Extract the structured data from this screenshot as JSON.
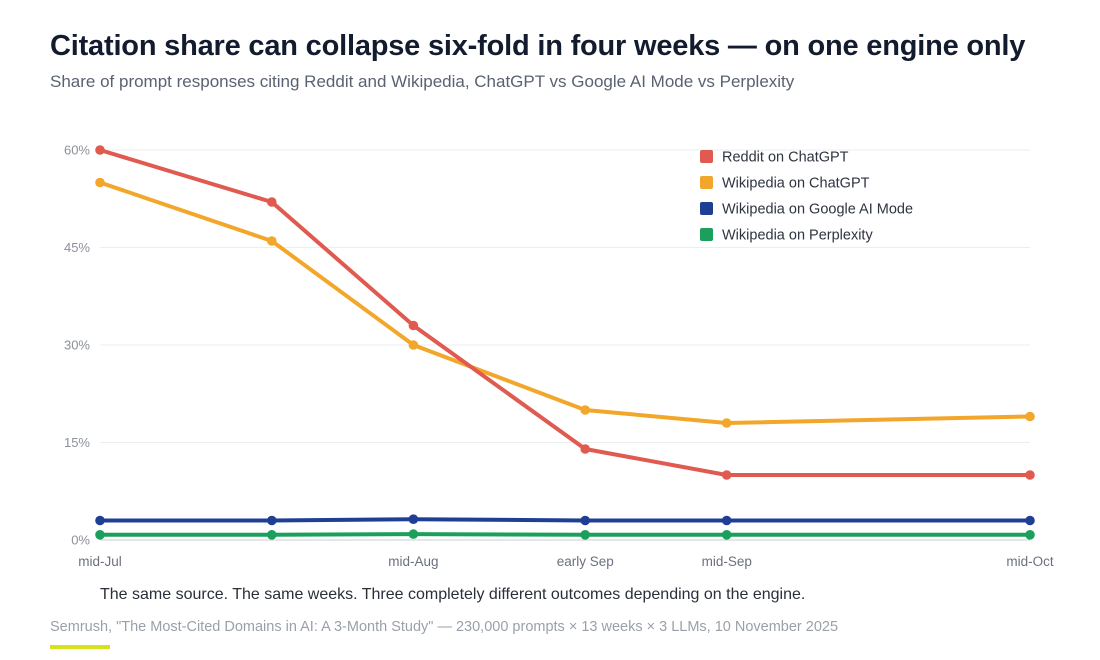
{
  "header": {
    "title": "Citation share can collapse six-fold in four weeks — on one engine only",
    "subtitle": "Share of prompt responses citing Reddit and Wikipedia, ChatGPT vs Google AI Mode vs Perplexity"
  },
  "footer": {
    "caption": "The same source. The same weeks. Three completely different outcomes depending on the engine.",
    "source": "Semrush, \"The Most-Cited Domains in AI: A 3-Month Study\" — 230,000 prompts × 13 weeks × 3 LLMs, 10 November 2025",
    "accent_color": "#d7e21d"
  },
  "chart_data": {
    "type": "line",
    "title": "Citation share can collapse six-fold in four weeks — on one engine only",
    "subtitle": "Share of prompt responses citing Reddit and Wikipedia, ChatGPT vs Google AI Mode vs Perplexity",
    "x": [
      "2025-07-15",
      "2025-08-01",
      "2025-08-15",
      "2025-09-01",
      "2025-09-15",
      "2025-10-15"
    ],
    "x_ticks": [
      {
        "x": "2025-07-15",
        "label": "mid-Jul"
      },
      {
        "x": "2025-08-15",
        "label": "mid-Aug"
      },
      {
        "x": "2025-09-01",
        "label": "early Sep"
      },
      {
        "x": "2025-09-15",
        "label": "mid-Sep"
      },
      {
        "x": "2025-10-15",
        "label": "mid-Oct"
      }
    ],
    "ylim": [
      0,
      60
    ],
    "y_ticks": [
      0,
      15,
      30,
      45,
      60
    ],
    "y_tick_labels": [
      "0%",
      "15%",
      "30%",
      "45%",
      "60%"
    ],
    "xlabel": "",
    "ylabel": "",
    "grid": true,
    "legend_position": "top-right",
    "series": [
      {
        "name": "Reddit on ChatGPT",
        "color": "#e05a4f",
        "values": [
          60,
          52,
          33,
          14,
          10,
          10
        ]
      },
      {
        "name": "Wikipedia on ChatGPT",
        "color": "#f2a72a",
        "values": [
          55,
          46,
          30,
          20,
          18,
          19
        ]
      },
      {
        "name": "Wikipedia on Google AI Mode",
        "color": "#1f3f94",
        "values": [
          3,
          3,
          3.2,
          3,
          3,
          3
        ]
      },
      {
        "name": "Wikipedia on Perplexity",
        "color": "#1aa05a",
        "values": [
          0.8,
          0.8,
          0.9,
          0.8,
          0.8,
          0.8
        ]
      }
    ]
  }
}
